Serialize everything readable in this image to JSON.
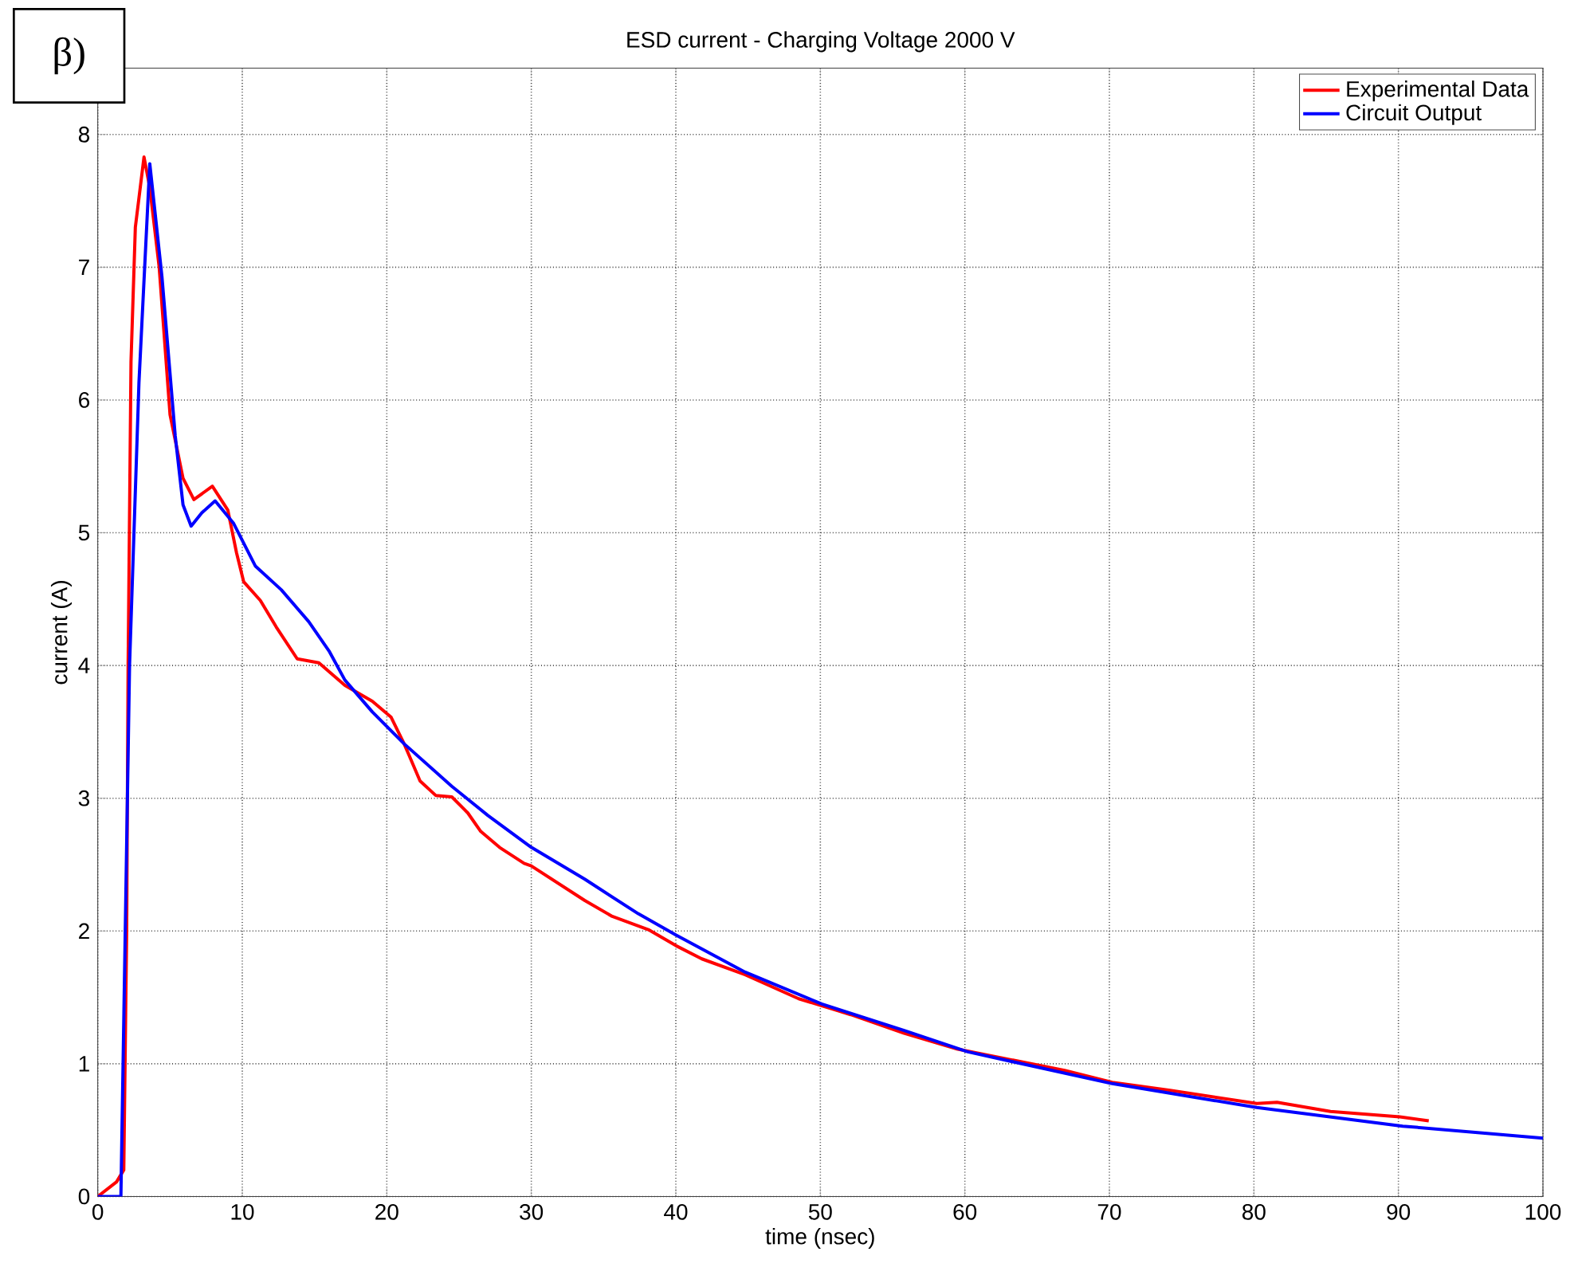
{
  "chart_data": {
    "type": "line",
    "title": "ESD current - Charging Voltage 2000 V",
    "xlabel": "time (nsec)",
    "ylabel": "current (A)",
    "annotations": [
      "β)"
    ],
    "xlim": [
      0,
      100
    ],
    "ylim": [
      0,
      8.5
    ],
    "xticks": [
      0,
      10,
      20,
      30,
      40,
      50,
      60,
      70,
      80,
      90,
      100
    ],
    "yticks": [
      0,
      1,
      2,
      3,
      4,
      5,
      6,
      7,
      8
    ],
    "grid": true,
    "legend": "top right",
    "marker": "none",
    "line_style": "solid",
    "series": [
      {
        "name": "Experimental Data",
        "color": "#ff0000",
        "x": [
          0,
          1.3,
          1.8,
          2.0,
          2.1,
          2.3,
          2.6,
          3.2,
          3.6,
          4.25,
          5.0,
          5.9,
          6.65,
          7.93,
          9.0,
          9.6,
          10.1,
          11.25,
          12.35,
          13.8,
          15.3,
          17.1,
          19.0,
          20.3,
          21.2,
          22.3,
          23.4,
          24.5,
          25.6,
          26.5,
          27.8,
          29.5,
          30.0,
          33.7,
          35.6,
          38.1,
          40.0,
          41.8,
          44.8,
          48.5,
          52.1,
          55.8,
          59.5,
          63.2,
          66.9,
          70.2,
          74.2,
          80.2,
          81.6,
          85.3,
          90.1,
          92.1
        ],
        "values": [
          0,
          0.11,
          0.2,
          2.0,
          4.0,
          6.29,
          7.3,
          7.83,
          7.6,
          7.0,
          5.89,
          5.41,
          5.25,
          5.35,
          5.17,
          4.85,
          4.63,
          4.49,
          4.29,
          4.05,
          4.02,
          3.85,
          3.73,
          3.61,
          3.41,
          3.13,
          3.02,
          3.01,
          2.89,
          2.75,
          2.63,
          2.51,
          2.49,
          2.23,
          2.11,
          2.01,
          1.89,
          1.79,
          1.67,
          1.49,
          1.37,
          1.23,
          1.11,
          1.03,
          0.95,
          0.86,
          0.8,
          0.7,
          0.71,
          0.64,
          0.6,
          0.57
        ]
      },
      {
        "name": "Circuit Output",
        "color": "#0000ff",
        "x": [
          0,
          1.6,
          1.9,
          2.2,
          2.85,
          3.6,
          4.44,
          5.36,
          5.9,
          6.46,
          7.2,
          8.12,
          9.4,
          10.9,
          12.7,
          14.6,
          16.0,
          17.1,
          19.0,
          21.2,
          24.5,
          27.0,
          30.0,
          33.7,
          37.4,
          40.0,
          44.8,
          50.1,
          55.8,
          60.2,
          70.2,
          80.2,
          90.3,
          100
        ],
        "values": [
          0,
          0,
          1.99,
          4.0,
          6.13,
          7.78,
          6.93,
          5.73,
          5.21,
          5.05,
          5.15,
          5.24,
          5.07,
          4.75,
          4.57,
          4.33,
          4.11,
          3.89,
          3.65,
          3.41,
          3.09,
          2.87,
          2.63,
          2.39,
          2.13,
          1.97,
          1.69,
          1.45,
          1.25,
          1.09,
          0.85,
          0.67,
          0.53,
          0.44
        ]
      }
    ]
  }
}
